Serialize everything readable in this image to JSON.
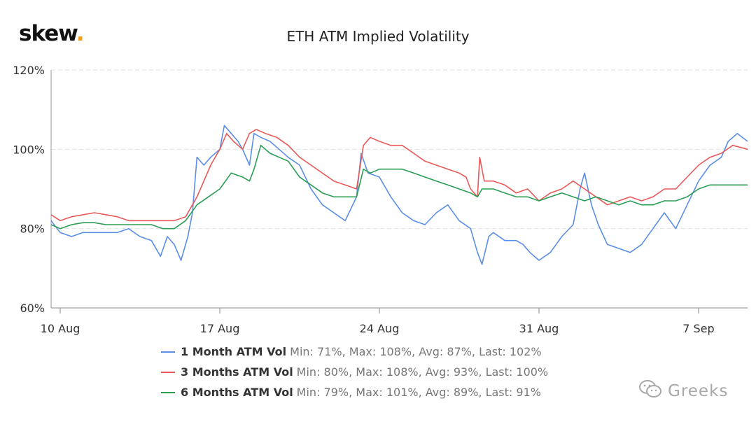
{
  "brand": {
    "logo_text": "skew",
    "logo_dot": ".",
    "accent_color": "#f0a020"
  },
  "watermark": {
    "text": "Greeks",
    "icon": "wechat-icon"
  },
  "chart_data": {
    "type": "line",
    "title": "ETH ATM Implied Volatility",
    "xlabel": "",
    "ylabel": "",
    "x_domain": [
      -0.4,
      30.15
    ],
    "x_ticks": [
      {
        "day": 0,
        "label": "10 Aug"
      },
      {
        "day": 7,
        "label": "17 Aug"
      },
      {
        "day": 14,
        "label": "24 Aug"
      },
      {
        "day": 21,
        "label": "31 Aug"
      },
      {
        "day": 28,
        "label": "7 Sep"
      }
    ],
    "ylim": [
      60,
      120
    ],
    "y_ticks": [
      60,
      80,
      100,
      120
    ],
    "y_tick_suffix": "%",
    "grid": true,
    "legend_position": "bottom",
    "series": [
      {
        "name": "1 Month ATM Vol",
        "color": "#5b8ee6",
        "stats": "Min: 71%, Max: 108%, Avg: 87%, Last: 102%",
        "points": [
          [
            -0.4,
            82
          ],
          [
            0,
            79
          ],
          [
            0.5,
            78
          ],
          [
            1,
            79
          ],
          [
            1.5,
            79
          ],
          [
            2,
            79
          ],
          [
            2.5,
            79
          ],
          [
            3,
            80
          ],
          [
            3.5,
            78
          ],
          [
            4,
            77
          ],
          [
            4.4,
            73
          ],
          [
            4.7,
            78
          ],
          [
            5,
            76
          ],
          [
            5.3,
            72
          ],
          [
            5.6,
            78
          ],
          [
            5.8,
            84
          ],
          [
            6,
            98
          ],
          [
            6.3,
            96
          ],
          [
            6.6,
            98
          ],
          [
            7,
            100
          ],
          [
            7.2,
            106
          ],
          [
            7.5,
            104
          ],
          [
            7.8,
            102
          ],
          [
            8,
            100
          ],
          [
            8.3,
            96
          ],
          [
            8.5,
            104
          ],
          [
            8.8,
            103
          ],
          [
            9.2,
            102
          ],
          [
            9.6,
            100
          ],
          [
            10,
            98
          ],
          [
            10.5,
            96
          ],
          [
            11,
            90
          ],
          [
            11.5,
            86
          ],
          [
            12,
            84
          ],
          [
            12.5,
            82
          ],
          [
            13,
            88
          ],
          [
            13.2,
            99
          ],
          [
            13.5,
            94
          ],
          [
            14,
            93
          ],
          [
            14.5,
            88
          ],
          [
            15,
            84
          ],
          [
            15.5,
            82
          ],
          [
            16,
            81
          ],
          [
            16.5,
            84
          ],
          [
            17,
            86
          ],
          [
            17.5,
            82
          ],
          [
            18,
            80
          ],
          [
            18.3,
            74
          ],
          [
            18.5,
            71
          ],
          [
            18.8,
            78
          ],
          [
            19,
            79
          ],
          [
            19.5,
            77
          ],
          [
            20,
            77
          ],
          [
            20.3,
            76
          ],
          [
            20.6,
            74
          ],
          [
            21,
            72
          ],
          [
            21.5,
            74
          ],
          [
            22,
            78
          ],
          [
            22.5,
            81
          ],
          [
            22.8,
            90
          ],
          [
            23,
            94
          ],
          [
            23.3,
            86
          ],
          [
            23.6,
            81
          ],
          [
            24,
            76
          ],
          [
            24.5,
            75
          ],
          [
            25,
            74
          ],
          [
            25.5,
            76
          ],
          [
            26,
            80
          ],
          [
            26.5,
            84
          ],
          [
            27,
            80
          ],
          [
            27.5,
            86
          ],
          [
            28,
            92
          ],
          [
            28.5,
            96
          ],
          [
            29,
            98
          ],
          [
            29.3,
            102
          ],
          [
            29.7,
            104
          ],
          [
            30.15,
            102
          ]
        ]
      },
      {
        "name": "3 Months ATM Vol",
        "color": "#e85a5a",
        "stats": "Min: 80%, Max: 108%, Avg: 93%, Last: 100%",
        "points": [
          [
            -0.4,
            83.5
          ],
          [
            0,
            82
          ],
          [
            0.5,
            83
          ],
          [
            1,
            83.5
          ],
          [
            1.5,
            84
          ],
          [
            2,
            83.5
          ],
          [
            2.5,
            83
          ],
          [
            3,
            82
          ],
          [
            3.5,
            82
          ],
          [
            4,
            82
          ],
          [
            4.5,
            82
          ],
          [
            5,
            82
          ],
          [
            5.5,
            83
          ],
          [
            6,
            88
          ],
          [
            6.3,
            92
          ],
          [
            6.6,
            96
          ],
          [
            7,
            100
          ],
          [
            7.3,
            104
          ],
          [
            7.6,
            102
          ],
          [
            8,
            100
          ],
          [
            8.3,
            104
          ],
          [
            8.6,
            105
          ],
          [
            9,
            104
          ],
          [
            9.5,
            103
          ],
          [
            10,
            101
          ],
          [
            10.5,
            98
          ],
          [
            11,
            96
          ],
          [
            11.5,
            94
          ],
          [
            12,
            92
          ],
          [
            12.5,
            91
          ],
          [
            13,
            90
          ],
          [
            13.3,
            101
          ],
          [
            13.6,
            103
          ],
          [
            14,
            102
          ],
          [
            14.5,
            101
          ],
          [
            15,
            101
          ],
          [
            15.5,
            99
          ],
          [
            16,
            97
          ],
          [
            16.5,
            96
          ],
          [
            17,
            95
          ],
          [
            17.5,
            94
          ],
          [
            17.8,
            93
          ],
          [
            18,
            90
          ],
          [
            18.3,
            88
          ],
          [
            18.4,
            98
          ],
          [
            18.6,
            92
          ],
          [
            19,
            92
          ],
          [
            19.5,
            91
          ],
          [
            20,
            89
          ],
          [
            20.5,
            90
          ],
          [
            21,
            87
          ],
          [
            21.5,
            89
          ],
          [
            22,
            90
          ],
          [
            22.5,
            92
          ],
          [
            23,
            90
          ],
          [
            23.5,
            88
          ],
          [
            24,
            86
          ],
          [
            24.5,
            87
          ],
          [
            25,
            88
          ],
          [
            25.5,
            87
          ],
          [
            26,
            88
          ],
          [
            26.5,
            90
          ],
          [
            27,
            90
          ],
          [
            27.5,
            93
          ],
          [
            28,
            96
          ],
          [
            28.5,
            98
          ],
          [
            29,
            99
          ],
          [
            29.5,
            101
          ],
          [
            30.15,
            100
          ]
        ]
      },
      {
        "name": "6 Months ATM Vol",
        "color": "#2a9d55",
        "stats": "Min: 79%, Max: 101%, Avg: 89%, Last: 91%",
        "points": [
          [
            -0.4,
            81
          ],
          [
            0,
            80
          ],
          [
            0.5,
            81
          ],
          [
            1,
            81.5
          ],
          [
            1.5,
            81.5
          ],
          [
            2,
            81
          ],
          [
            2.5,
            81
          ],
          [
            3,
            81
          ],
          [
            3.5,
            81
          ],
          [
            4,
            81
          ],
          [
            4.5,
            80
          ],
          [
            5,
            80
          ],
          [
            5.5,
            82
          ],
          [
            6,
            86
          ],
          [
            6.5,
            88
          ],
          [
            7,
            90
          ],
          [
            7.5,
            94
          ],
          [
            8,
            93
          ],
          [
            8.3,
            92
          ],
          [
            8.5,
            95
          ],
          [
            8.8,
            101
          ],
          [
            9.2,
            99
          ],
          [
            9.6,
            98
          ],
          [
            10,
            97
          ],
          [
            10.5,
            93
          ],
          [
            11,
            91
          ],
          [
            11.5,
            89
          ],
          [
            12,
            88
          ],
          [
            12.5,
            88
          ],
          [
            13,
            88
          ],
          [
            13.3,
            95
          ],
          [
            13.6,
            94
          ],
          [
            14,
            95
          ],
          [
            14.5,
            95
          ],
          [
            15,
            95
          ],
          [
            15.5,
            94
          ],
          [
            16,
            93
          ],
          [
            16.5,
            92
          ],
          [
            17,
            91
          ],
          [
            17.5,
            90
          ],
          [
            18,
            89
          ],
          [
            18.3,
            88
          ],
          [
            18.5,
            90
          ],
          [
            19,
            90
          ],
          [
            19.5,
            89
          ],
          [
            20,
            88
          ],
          [
            20.5,
            88
          ],
          [
            21,
            87
          ],
          [
            21.5,
            88
          ],
          [
            22,
            89
          ],
          [
            22.5,
            88
          ],
          [
            23,
            87
          ],
          [
            23.5,
            88
          ],
          [
            24,
            87
          ],
          [
            24.5,
            86
          ],
          [
            25,
            87
          ],
          [
            25.5,
            86
          ],
          [
            26,
            86
          ],
          [
            26.5,
            87
          ],
          [
            27,
            87
          ],
          [
            27.5,
            88
          ],
          [
            28,
            90
          ],
          [
            28.5,
            91
          ],
          [
            29,
            91
          ],
          [
            29.5,
            91
          ],
          [
            30.15,
            91
          ]
        ]
      }
    ]
  }
}
